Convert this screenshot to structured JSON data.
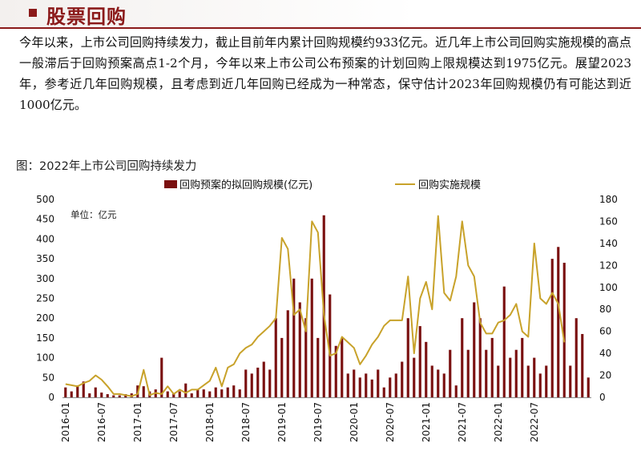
{
  "header": {
    "title": "股票回购"
  },
  "intro": {
    "text": "今年以来，上市公司回购持续发力，截止目前年内累计回购规模约933亿元。近几年上市公司回购实施规模的高点一般滞后于回购预案高点1-2个月，今年以来上市公司公布预案的计划回购上限规模达到1975亿元。展望2023年，参考近几年回购规模，且考虑到近几年回购已经成为一种常态，保守估计2023年回购规模仍有可能达到近1000亿元。"
  },
  "chart_title": "图：2022年上市公司回购持续发力",
  "colors": {
    "bar": "#7a1010",
    "line": "#c8a22a",
    "accent": "#8b1a1a"
  },
  "chart_data": {
    "type": "bar+line",
    "unit_label": "单位：亿元",
    "legend": [
      "回购预案的拟回购规模(亿元)",
      "回购实施规模"
    ],
    "legend_position": "top",
    "x_tick_labels": [
      "2016-01",
      "2016-07",
      "2017-01",
      "2017-07",
      "2018-01",
      "2018-07",
      "2019-01",
      "2019-07",
      "2020-01",
      "2020-07",
      "2021-01",
      "2021-07",
      "2022-01",
      "2022-07"
    ],
    "left_axis": {
      "ylim": [
        0,
        500
      ],
      "ticks": [
        0,
        50,
        100,
        150,
        200,
        250,
        300,
        350,
        400,
        450,
        500
      ]
    },
    "right_axis": {
      "ylim": [
        0,
        180
      ],
      "ticks": [
        0,
        20,
        40,
        60,
        80,
        100,
        120,
        140,
        160,
        180
      ]
    },
    "grid": false,
    "series": [
      {
        "name": "回购预案的拟回购规模(亿元)",
        "axis": "left",
        "type": "bar",
        "start": "2016-01",
        "values": [
          25,
          15,
          30,
          40,
          10,
          25,
          12,
          8,
          5,
          5,
          8,
          10,
          30,
          28,
          15,
          20,
          100,
          15,
          10,
          15,
          35,
          10,
          20,
          20,
          15,
          25,
          20,
          25,
          30,
          20,
          70,
          60,
          75,
          90,
          70,
          200,
          150,
          220,
          300,
          240,
          200,
          300,
          150,
          460,
          260,
          130,
          150,
          60,
          70,
          50,
          60,
          45,
          70,
          25,
          50,
          60,
          90,
          200,
          100,
          180,
          140,
          80,
          70,
          60,
          120,
          30,
          200,
          120,
          240,
          200,
          120,
          150,
          80,
          280,
          100,
          120,
          150,
          80,
          100,
          60,
          80,
          350,
          380,
          340,
          80,
          200,
          160,
          50
        ]
      },
      {
        "name": "回购实施规模",
        "axis": "right",
        "type": "line",
        "start": "2016-01",
        "values": [
          12,
          11,
          10,
          13,
          15,
          20,
          16,
          10,
          3,
          3,
          2,
          1,
          3,
          25,
          2,
          4,
          3,
          10,
          3,
          7,
          4,
          7,
          7,
          11,
          15,
          27,
          10,
          27,
          30,
          40,
          45,
          48,
          55,
          60,
          65,
          72,
          145,
          135,
          75,
          80,
          60,
          160,
          150,
          75,
          38,
          40,
          55,
          50,
          45,
          30,
          38,
          48,
          55,
          65,
          70,
          70,
          70,
          110,
          40,
          90,
          105,
          80,
          165,
          95,
          88,
          110,
          160,
          120,
          110,
          68,
          58,
          58,
          68,
          70,
          75,
          85,
          60,
          55,
          140,
          90,
          85,
          95,
          85,
          50
        ]
      }
    ]
  }
}
